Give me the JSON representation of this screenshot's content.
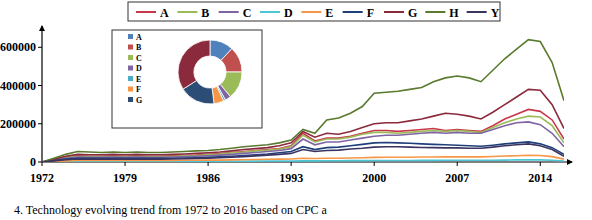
{
  "chart_data": [
    {
      "type": "line",
      "annotations": [
        "4. Technology evolving trend from 1972 to 2016 based on CPC a"
      ],
      "x": [
        1972,
        1973,
        1974,
        1975,
        1976,
        1977,
        1978,
        1979,
        1980,
        1981,
        1982,
        1983,
        1984,
        1985,
        1986,
        1987,
        1988,
        1989,
        1990,
        1991,
        1992,
        1993,
        1994,
        1995,
        1996,
        1997,
        1998,
        1999,
        2000,
        2001,
        2002,
        2003,
        2004,
        2005,
        2006,
        2007,
        2008,
        2009,
        2010,
        2011,
        2012,
        2013,
        2014,
        2015,
        2016
      ],
      "xlim": [
        1972,
        2016
      ],
      "xticks": [
        1972,
        1979,
        1986,
        1993,
        2000,
        2007,
        2014
      ],
      "ylim": [
        0,
        680000
      ],
      "yticks": [
        0,
        200000,
        400000,
        600000
      ],
      "legend": "top",
      "series": [
        {
          "name": "A",
          "color": "#c8384a",
          "values": [
            0,
            12000,
            25000,
            32000,
            30000,
            30000,
            32000,
            30000,
            32000,
            30000,
            30000,
            32000,
            34000,
            36000,
            40000,
            44000,
            50000,
            55000,
            60000,
            65000,
            70000,
            85000,
            150000,
            110000,
            125000,
            125000,
            135000,
            150000,
            165000,
            165000,
            160000,
            165000,
            170000,
            175000,
            165000,
            170000,
            165000,
            160000,
            190000,
            225000,
            250000,
            275000,
            265000,
            220000,
            120000
          ]
        },
        {
          "name": "B",
          "color": "#9bbb59",
          "values": [
            0,
            12000,
            24000,
            30000,
            28000,
            28000,
            30000,
            28000,
            30000,
            28000,
            28000,
            30000,
            32000,
            34000,
            38000,
            42000,
            48000,
            52000,
            58000,
            62000,
            68000,
            80000,
            140000,
            105000,
            120000,
            120000,
            130000,
            145000,
            155000,
            155000,
            150000,
            155000,
            160000,
            165000,
            160000,
            165000,
            160000,
            155000,
            180000,
            205000,
            225000,
            240000,
            235000,
            190000,
            100000
          ]
        },
        {
          "name": "C",
          "color": "#8064a2",
          "values": [
            0,
            10000,
            20000,
            26000,
            25000,
            25000,
            26000,
            25000,
            26000,
            25000,
            25000,
            26000,
            28000,
            30000,
            33000,
            36000,
            40000,
            45000,
            50000,
            55000,
            60000,
            70000,
            120000,
            90000,
            105000,
            105000,
            115000,
            125000,
            135000,
            140000,
            140000,
            145000,
            150000,
            155000,
            150000,
            155000,
            150000,
            150000,
            170000,
            190000,
            205000,
            210000,
            195000,
            150000,
            80000
          ]
        },
        {
          "name": "D",
          "color": "#4bc6d6",
          "values": [
            0,
            1000,
            2000,
            3000,
            3000,
            3000,
            3000,
            3000,
            3000,
            3000,
            3000,
            3000,
            3000,
            3000,
            3500,
            3500,
            4000,
            4000,
            4500,
            5000,
            5000,
            5500,
            6000,
            6000,
            6500,
            6500,
            7000,
            7000,
            8000,
            8000,
            8000,
            8000,
            8500,
            8500,
            9000,
            9000,
            9000,
            9000,
            9500,
            10000,
            11000,
            12000,
            11000,
            9000,
            5000
          ]
        },
        {
          "name": "E",
          "color": "#f79646",
          "values": [
            0,
            3000,
            6000,
            8000,
            8000,
            8000,
            8000,
            8000,
            8000,
            8000,
            8000,
            8000,
            9000,
            9000,
            10000,
            10000,
            11000,
            12000,
            13000,
            14000,
            15000,
            16000,
            20000,
            18000,
            20000,
            20000,
            21000,
            22000,
            24000,
            25000,
            25000,
            25000,
            26000,
            26000,
            27000,
            27000,
            27000,
            27000,
            29000,
            31000,
            33000,
            35000,
            34000,
            28000,
            15000
          ]
        },
        {
          "name": "F",
          "color": "#1f3f7a",
          "values": [
            0,
            8000,
            15000,
            20000,
            19000,
            19000,
            20000,
            19000,
            20000,
            19000,
            19000,
            20000,
            21000,
            22000,
            24000,
            27000,
            30000,
            34000,
            38000,
            42000,
            48000,
            55000,
            80000,
            65000,
            75000,
            78000,
            85000,
            92000,
            100000,
            102000,
            100000,
            98000,
            95000,
            92000,
            90000,
            88000,
            85000,
            82000,
            88000,
            95000,
            100000,
            105000,
            95000,
            75000,
            40000
          ]
        },
        {
          "name": "G",
          "color": "#8b2a3c",
          "values": [
            0,
            15000,
            30000,
            40000,
            38000,
            38000,
            40000,
            38000,
            40000,
            38000,
            38000,
            40000,
            42000,
            45000,
            48000,
            52000,
            58000,
            65000,
            70000,
            75000,
            85000,
            100000,
            160000,
            130000,
            150000,
            145000,
            160000,
            180000,
            200000,
            205000,
            205000,
            215000,
            225000,
            240000,
            255000,
            250000,
            240000,
            225000,
            260000,
            300000,
            340000,
            380000,
            375000,
            300000,
            175000
          ]
        },
        {
          "name": "H",
          "color": "#5a7a2e",
          "values": [
            0,
            20000,
            40000,
            55000,
            52000,
            50000,
            52000,
            50000,
            52000,
            50000,
            50000,
            52000,
            55000,
            58000,
            60000,
            65000,
            72000,
            80000,
            85000,
            90000,
            100000,
            115000,
            170000,
            150000,
            220000,
            230000,
            255000,
            290000,
            360000,
            365000,
            370000,
            380000,
            390000,
            420000,
            440000,
            450000,
            440000,
            420000,
            480000,
            540000,
            590000,
            640000,
            630000,
            520000,
            320000
          ]
        },
        {
          "name": "Y",
          "color": "#3c3460",
          "values": [
            0,
            6000,
            12000,
            16000,
            15000,
            15000,
            16000,
            15000,
            16000,
            15000,
            15000,
            16000,
            17000,
            18000,
            20000,
            22000,
            25000,
            28000,
            32000,
            36000,
            40000,
            45000,
            65000,
            55000,
            60000,
            62000,
            68000,
            72000,
            78000,
            80000,
            80000,
            78000,
            76000,
            75000,
            74000,
            74000,
            72000,
            72000,
            78000,
            85000,
            90000,
            95000,
            85000,
            65000,
            30000
          ]
        }
      ]
    },
    {
      "type": "pie",
      "categories": [
        "A",
        "B",
        "C",
        "D",
        "E",
        "F",
        "G",
        null
      ],
      "values": [
        12,
        13,
        14,
        3,
        1,
        5,
        18,
        34
      ],
      "colors": [
        "#4f81bd",
        "#c0504d",
        "#9bbb59",
        "#8064a2",
        "#4bacc6",
        "#f79646",
        "#2c4d75",
        "#8b2a3c"
      ],
      "legend": "left"
    }
  ]
}
